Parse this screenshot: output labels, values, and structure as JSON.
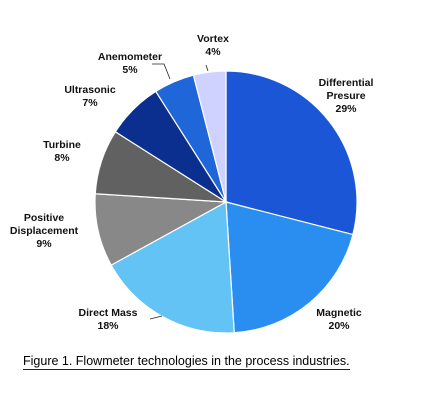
{
  "chart_data": {
    "type": "pie",
    "start_angle_deg": 0,
    "direction": "clockwise",
    "slices": [
      {
        "name": "Differential Presure",
        "label_lines": [
          "Differential",
          "Presure"
        ],
        "value": 29,
        "value_label": "29%",
        "color": "#1a56d6"
      },
      {
        "name": "Magnetic",
        "label_lines": [
          "Magnetic"
        ],
        "value": 20,
        "value_label": "20%",
        "color": "#2a8ef0"
      },
      {
        "name": "Direct Mass",
        "label_lines": [
          "Direct Mass"
        ],
        "value": 18,
        "value_label": "18%",
        "color": "#64c3f5"
      },
      {
        "name": "Positive Displacement",
        "label_lines": [
          "Positive",
          "Displacement"
        ],
        "value": 9,
        "value_label": "9%",
        "color": "#888888"
      },
      {
        "name": "Turbine",
        "label_lines": [
          "Turbine"
        ],
        "value": 8,
        "value_label": "8%",
        "color": "#616161"
      },
      {
        "name": "Ultrasonic",
        "label_lines": [
          "Ultrasonic"
        ],
        "value": 7,
        "value_label": "7%",
        "color": "#0a2f8f"
      },
      {
        "name": "Anemometer",
        "label_lines": [
          "Anemometer"
        ],
        "value": 5,
        "value_label": "5%",
        "color": "#1f66d9"
      },
      {
        "name": "Vortex",
        "label_lines": [
          "Vortex"
        ],
        "value": 4,
        "value_label": "4%",
        "color": "#cfd2ff"
      }
    ]
  },
  "caption": "Figure 1. Flowmeter technologies in the process industries."
}
